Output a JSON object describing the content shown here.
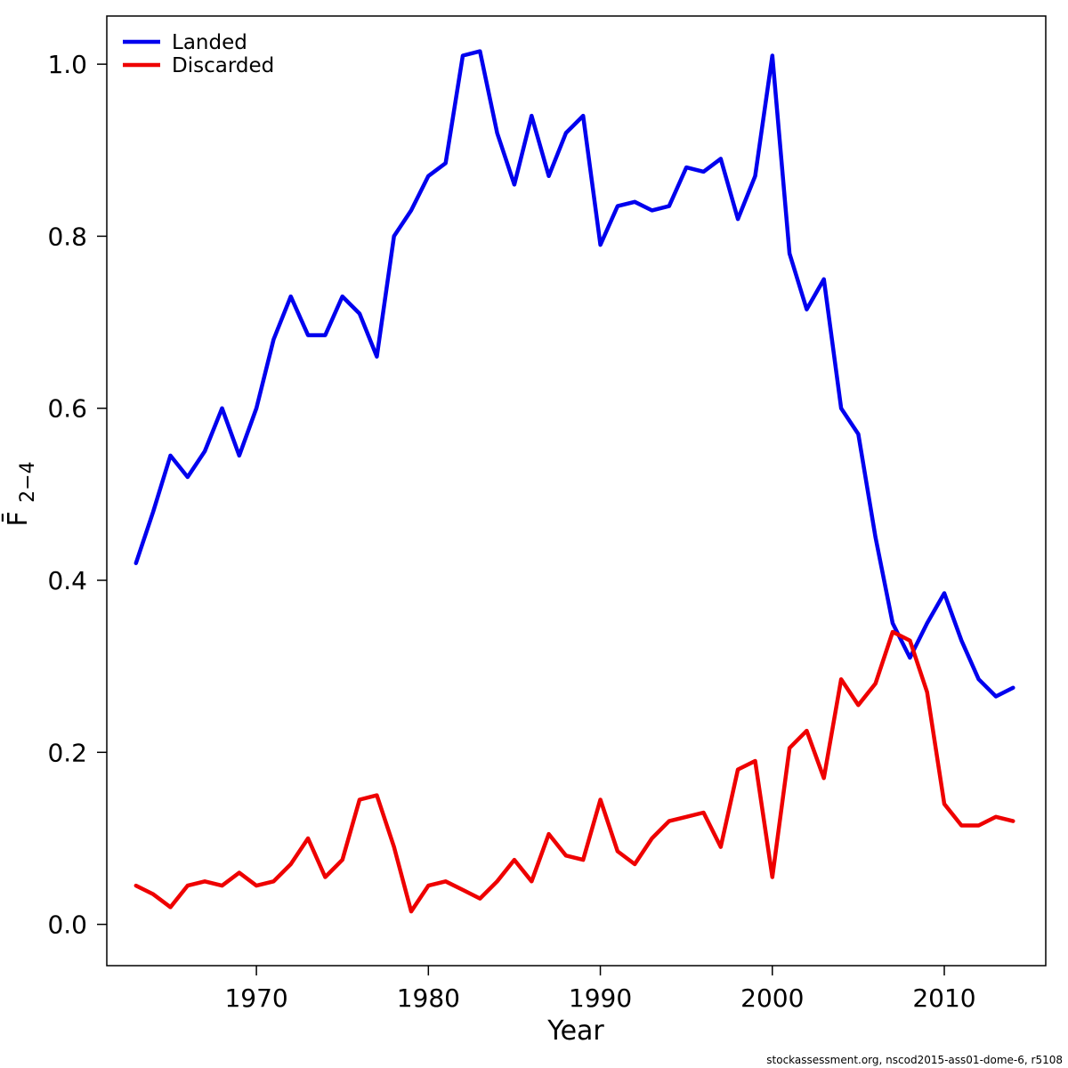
{
  "chart_data": {
    "type": "line",
    "title": "",
    "xlabel": "Year",
    "ylabel": "F̄2−4",
    "ylabel_main": "F̄",
    "ylabel_sub": "2−4",
    "grid": false,
    "legend_position": "top-left",
    "xlim": [
      1961.3,
      2015.9
    ],
    "ylim": [
      -0.048,
      1.056
    ],
    "x_ticks": [
      1970,
      1980,
      1990,
      2000,
      2010
    ],
    "y_ticks": [
      0.0,
      0.2,
      0.4,
      0.6,
      0.8,
      1.0
    ],
    "x": [
      1963,
      1964,
      1965,
      1966,
      1967,
      1968,
      1969,
      1970,
      1971,
      1972,
      1973,
      1974,
      1975,
      1976,
      1977,
      1978,
      1979,
      1980,
      1981,
      1982,
      1983,
      1984,
      1985,
      1986,
      1987,
      1988,
      1989,
      1990,
      1991,
      1992,
      1993,
      1994,
      1995,
      1996,
      1997,
      1998,
      1999,
      2000,
      2001,
      2002,
      2003,
      2004,
      2005,
      2006,
      2007,
      2008,
      2009,
      2010,
      2011,
      2012,
      2013,
      2014
    ],
    "series": [
      {
        "name": "Landed",
        "color": "#0000ee",
        "values": [
          0.42,
          0.48,
          0.545,
          0.52,
          0.55,
          0.6,
          0.545,
          0.6,
          0.68,
          0.73,
          0.685,
          0.685,
          0.73,
          0.71,
          0.66,
          0.8,
          0.83,
          0.87,
          0.885,
          1.01,
          1.015,
          0.92,
          0.86,
          0.94,
          0.87,
          0.92,
          0.94,
          0.79,
          0.835,
          0.84,
          0.83,
          0.835,
          0.88,
          0.875,
          0.89,
          0.82,
          0.87,
          1.01,
          0.78,
          0.715,
          0.75,
          0.6,
          0.57,
          0.45,
          0.35,
          0.31,
          0.35,
          0.385,
          0.33,
          0.285,
          0.265,
          0.275
        ]
      },
      {
        "name": "Discarded",
        "color": "#ee0000",
        "values": [
          0.045,
          0.035,
          0.02,
          0.045,
          0.05,
          0.045,
          0.06,
          0.045,
          0.05,
          0.07,
          0.1,
          0.055,
          0.075,
          0.145,
          0.15,
          0.09,
          0.015,
          0.045,
          0.05,
          0.04,
          0.03,
          0.05,
          0.075,
          0.05,
          0.105,
          0.08,
          0.075,
          0.145,
          0.085,
          0.07,
          0.1,
          0.12,
          0.125,
          0.13,
          0.09,
          0.18,
          0.19,
          0.055,
          0.205,
          0.225,
          0.17,
          0.285,
          0.255,
          0.28,
          0.34,
          0.33,
          0.27,
          0.14,
          0.115,
          0.115,
          0.125,
          0.12
        ]
      }
    ]
  },
  "footer": {
    "watermark": "stockassessment.org, nscod2015-ass01-dome-6, r5108"
  }
}
